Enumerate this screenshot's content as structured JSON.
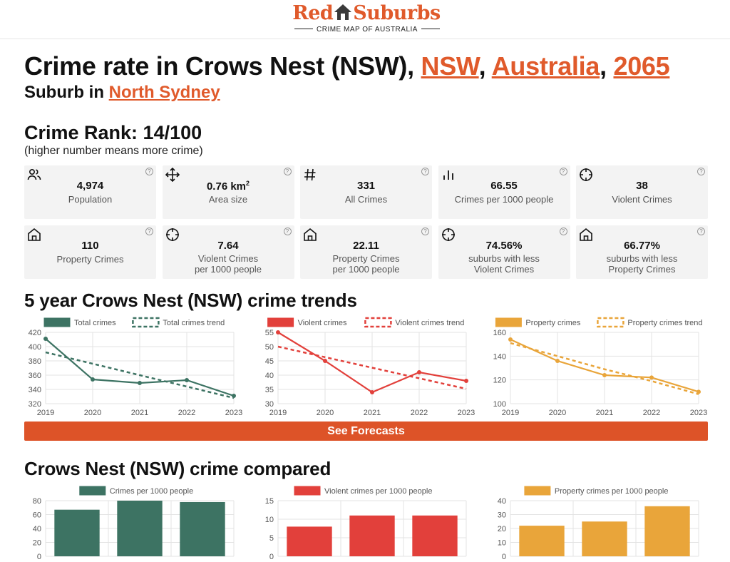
{
  "header": {
    "brand_left": "Red",
    "brand_right": "Suburbs",
    "tagline": "CRIME MAP OF AUSTRALIA",
    "brand_color": "#e05a2b"
  },
  "title": {
    "prefix": "Crime rate in Crows Nest (NSW), ",
    "state": "NSW",
    "sep1": ", ",
    "country": "Australia",
    "sep2": ", ",
    "postcode": "2065"
  },
  "subtitle": {
    "prefix": "Suburb in ",
    "council": "North Sydney"
  },
  "rank": {
    "label": "Crime Rank: 14/100",
    "note": "(higher number means more crime)"
  },
  "stats": [
    {
      "icon": "people-icon",
      "value": "4,974",
      "label1": "Population",
      "label2": ""
    },
    {
      "icon": "move-icon",
      "value": "0.76 km",
      "sup": "2",
      "label1": "Area size",
      "label2": ""
    },
    {
      "icon": "hash-icon",
      "value": "331",
      "label1": "All Crimes",
      "label2": ""
    },
    {
      "icon": "bar-chart-icon",
      "value": "66.55",
      "label1": "Crimes per 1000 people",
      "label2": ""
    },
    {
      "icon": "crosshair-icon",
      "value": "38",
      "label1": "Violent Crimes",
      "label2": ""
    },
    {
      "icon": "home-icon",
      "value": "110",
      "label1": "Property Crimes",
      "label2": ""
    },
    {
      "icon": "crosshair-icon",
      "value": "7.64",
      "label1": "Violent Crimes",
      "label2": "per 1000 people"
    },
    {
      "icon": "home-icon",
      "value": "22.11",
      "label1": "Property Crimes",
      "label2": "per 1000 people"
    },
    {
      "icon": "crosshair-icon",
      "value": "74.56%",
      "label1": "suburbs with less",
      "label2": "Violent Crimes"
    },
    {
      "icon": "home-icon",
      "value": "66.77%",
      "label1": "suburbs with less",
      "label2": "Property Crimes"
    }
  ],
  "help_glyph": "?",
  "trends_title": "5 year Crows Nest (NSW) crime trends",
  "forecast_button": "See Forecasts",
  "compare_title": "Crows Nest (NSW) crime compared",
  "chart_data": [
    {
      "type": "line",
      "x": [
        "2019",
        "2020",
        "2021",
        "2022",
        "2023"
      ],
      "ylim": [
        320,
        420
      ],
      "yticks": [
        320,
        340,
        360,
        380,
        400,
        420
      ],
      "grid": true,
      "legend": "top",
      "color": "#3d7363",
      "series": [
        {
          "name": "Total crimes",
          "values": [
            411,
            354,
            349,
            353,
            331
          ],
          "style": "solid"
        },
        {
          "name": "Total crimes trend",
          "values": [
            392,
            376,
            360,
            344,
            328
          ],
          "style": "dashed"
        }
      ]
    },
    {
      "type": "line",
      "x": [
        "2019",
        "2020",
        "2021",
        "2022",
        "2023"
      ],
      "ylim": [
        30,
        55
      ],
      "yticks": [
        30,
        35,
        40,
        45,
        50,
        55
      ],
      "grid": true,
      "legend": "top",
      "color": "#e2403b",
      "series": [
        {
          "name": "Violent crimes",
          "values": [
            55,
            45,
            34,
            41,
            38
          ],
          "style": "solid"
        },
        {
          "name": "Violent crimes trend",
          "values": [
            50,
            46.3,
            42.6,
            38.9,
            35.2
          ],
          "style": "dashed"
        }
      ]
    },
    {
      "type": "line",
      "x": [
        "2019",
        "2020",
        "2021",
        "2022",
        "2023"
      ],
      "ylim": [
        100,
        160
      ],
      "yticks": [
        100,
        120,
        140,
        160
      ],
      "grid": true,
      "legend": "top",
      "color": "#e9a53a",
      "series": [
        {
          "name": "Property crimes",
          "values": [
            154,
            136,
            124,
            122,
            110
          ],
          "style": "solid"
        },
        {
          "name": "Property crimes trend",
          "values": [
            151,
            140,
            129,
            119,
            108
          ],
          "style": "dashed"
        }
      ]
    },
    {
      "type": "bar",
      "categories": [
        "",
        "",
        ""
      ],
      "ylim": [
        0,
        80
      ],
      "yticks": [
        0,
        20,
        40,
        60,
        80
      ],
      "grid": true,
      "legend": "top",
      "color": "#3d7363",
      "series": [
        {
          "name": "Crimes per 1000 people",
          "values": [
            67,
            80,
            78
          ]
        }
      ]
    },
    {
      "type": "bar",
      "categories": [
        "",
        "",
        ""
      ],
      "ylim": [
        0,
        15
      ],
      "yticks": [
        0,
        5,
        10,
        15
      ],
      "grid": true,
      "legend": "top",
      "color": "#e2403b",
      "series": [
        {
          "name": "Violent crimes per 1000 people",
          "values": [
            8,
            11,
            11
          ]
        }
      ]
    },
    {
      "type": "bar",
      "categories": [
        "",
        "",
        ""
      ],
      "ylim": [
        0,
        40
      ],
      "yticks": [
        0,
        10,
        20,
        30,
        40
      ],
      "grid": true,
      "legend": "top",
      "color": "#e9a53a",
      "series": [
        {
          "name": "Property crimes per 1000 people",
          "values": [
            22,
            25,
            36
          ]
        }
      ]
    }
  ]
}
